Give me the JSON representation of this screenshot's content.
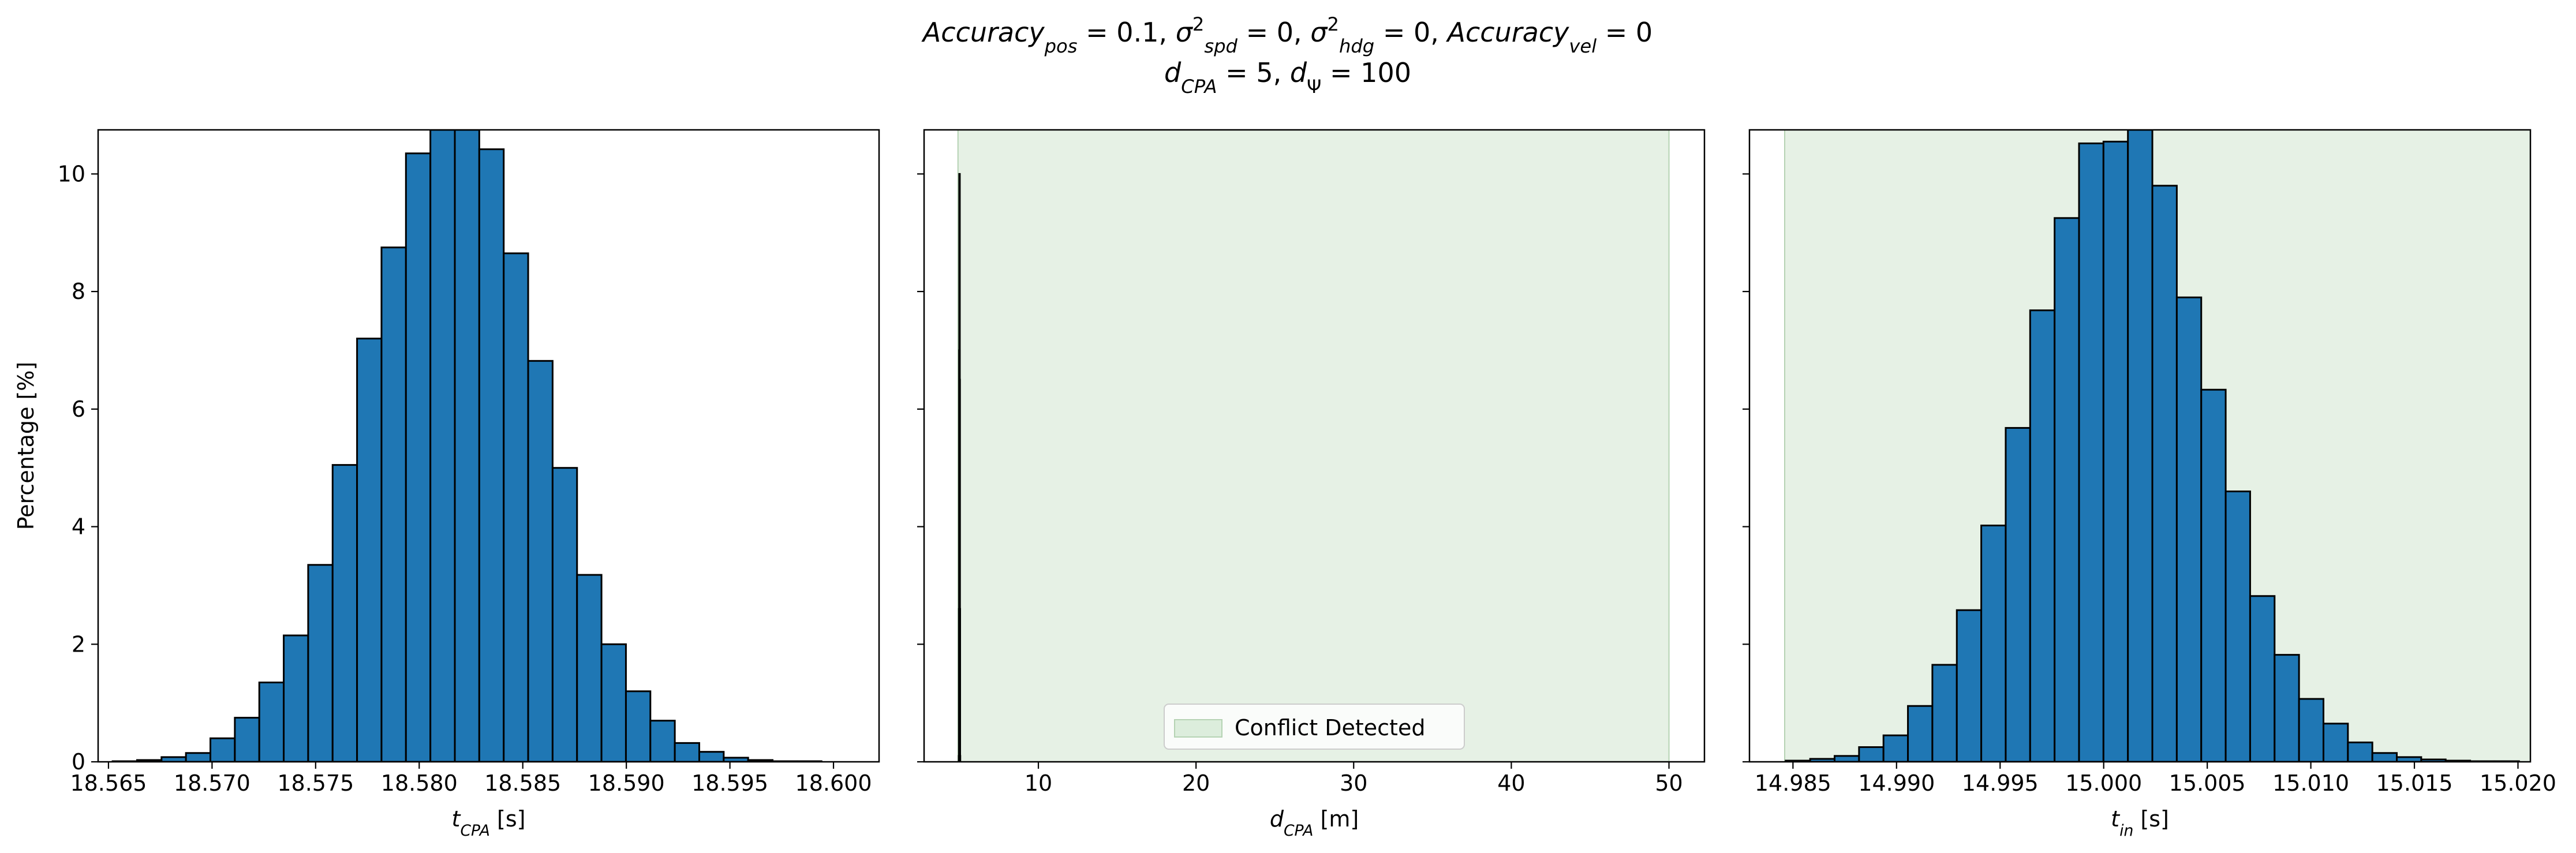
{
  "title": {
    "line1": [
      {
        "t": "Accuracy",
        "i": true
      },
      {
        "t": "pos",
        "i": true,
        "sub": true
      },
      {
        "t": " = 0.1, "
      },
      {
        "t": "σ",
        "i": true
      },
      {
        "t": "2",
        "sup": true
      },
      {
        "t": "spd",
        "i": true,
        "sub": true
      },
      {
        "t": " = 0, "
      },
      {
        "t": "σ",
        "i": true
      },
      {
        "t": "2",
        "sup": true
      },
      {
        "t": "hdg",
        "i": true,
        "sub": true
      },
      {
        "t": " = 0, "
      },
      {
        "t": "Accuracy",
        "i": true
      },
      {
        "t": "vel",
        "i": true,
        "sub": true
      },
      {
        "t": " = 0"
      }
    ],
    "line2": [
      {
        "t": "d",
        "i": true
      },
      {
        "t": "CPA",
        "i": true,
        "sub": true
      },
      {
        "t": " = 5, "
      },
      {
        "t": "d",
        "i": true
      },
      {
        "t": "Ψ",
        "sub": true
      },
      {
        "t": " = 100"
      }
    ]
  },
  "chart_data": [
    {
      "type": "bar",
      "ylabel": "Percentage [%]",
      "xlabel": [
        {
          "t": "t",
          "i": true
        },
        {
          "t": "CPA",
          "i": true,
          "sub": true
        },
        {
          "t": " [s]"
        }
      ],
      "xlim": [
        18.5645,
        18.6022
      ],
      "ylim": [
        0,
        10.75
      ],
      "xticks": [
        18.565,
        18.57,
        18.575,
        18.58,
        18.585,
        18.59,
        18.595,
        18.6
      ],
      "xtick_labels": [
        "18.565",
        "18.570",
        "18.575",
        "18.580",
        "18.585",
        "18.590",
        "18.595",
        "18.600"
      ],
      "yticks": [
        0,
        2,
        4,
        6,
        8,
        10
      ],
      "ytick_labels": [
        "0",
        "2",
        "4",
        "6",
        "8",
        "10"
      ],
      "bin_start": 18.5652,
      "bin_width": 0.00118,
      "values": [
        0.01,
        0.03,
        0.08,
        0.15,
        0.4,
        0.75,
        1.35,
        2.15,
        3.35,
        5.05,
        7.2,
        8.75,
        10.35,
        10.75,
        10.75,
        10.42,
        8.65,
        6.82,
        5.0,
        3.18,
        2.0,
        1.2,
        0.7,
        0.32,
        0.17,
        0.07,
        0.03,
        0.01,
        0.01
      ],
      "bar_color": "#1f77b4",
      "edge_color": "#000000"
    },
    {
      "type": "bar",
      "xlabel": [
        {
          "t": "d",
          "i": true
        },
        {
          "t": "CPA",
          "i": true,
          "sub": true
        },
        {
          "t": " [m]"
        }
      ],
      "xlim": [
        2.75,
        52.25
      ],
      "ylim": [
        0,
        10.75
      ],
      "xticks": [
        10,
        20,
        30,
        40,
        50
      ],
      "xtick_labels": [
        "10",
        "20",
        "30",
        "40",
        "50"
      ],
      "yticks": [
        0,
        2,
        4,
        6,
        8,
        10
      ],
      "ytick_labels": [
        "",
        "",
        "",
        "",
        "",
        ""
      ],
      "shade": [
        4.9,
        50.0
      ],
      "shade_color": "#d5e8d4",
      "bin_start": 4.95,
      "bin_width": 0.01,
      "values": [
        0.1,
        2.6,
        7.0,
        10.0,
        6.5,
        2.6,
        0.1
      ],
      "bar_color": "#1f77b4",
      "edge_color": "#000000",
      "legend": "Conflict Detected",
      "legend_position": "lower center"
    },
    {
      "type": "bar",
      "xlabel": [
        {
          "t": "t",
          "i": true
        },
        {
          "t": "in",
          "i": true,
          "sub": true
        },
        {
          "t": " [s]"
        }
      ],
      "xlim": [
        14.9829,
        15.0206
      ],
      "ylim": [
        0,
        10.75
      ],
      "xticks": [
        14.985,
        14.99,
        14.995,
        15.0,
        15.005,
        15.01,
        15.015,
        15.02
      ],
      "xtick_labels": [
        "14.985",
        "14.990",
        "14.995",
        "15.000",
        "15.005",
        "15.010",
        "15.015",
        "15.020"
      ],
      "yticks": [
        0,
        2,
        4,
        6,
        8,
        10
      ],
      "ytick_labels": [
        "",
        "",
        "",
        "",
        "",
        ""
      ],
      "shade": [
        14.9846,
        15.0206
      ],
      "shade_color": "#d5e8d4",
      "bin_start": 14.98465,
      "bin_width": 0.00118,
      "values": [
        0.02,
        0.05,
        0.1,
        0.25,
        0.45,
        0.95,
        1.65,
        2.58,
        4.02,
        5.68,
        7.68,
        9.25,
        10.52,
        10.55,
        10.75,
        9.8,
        7.9,
        6.33,
        4.6,
        2.82,
        1.82,
        1.07,
        0.65,
        0.33,
        0.15,
        0.08,
        0.04,
        0.02,
        0.01,
        0.01
      ],
      "bar_color": "#1f77b4",
      "edge_color": "#000000"
    }
  ]
}
